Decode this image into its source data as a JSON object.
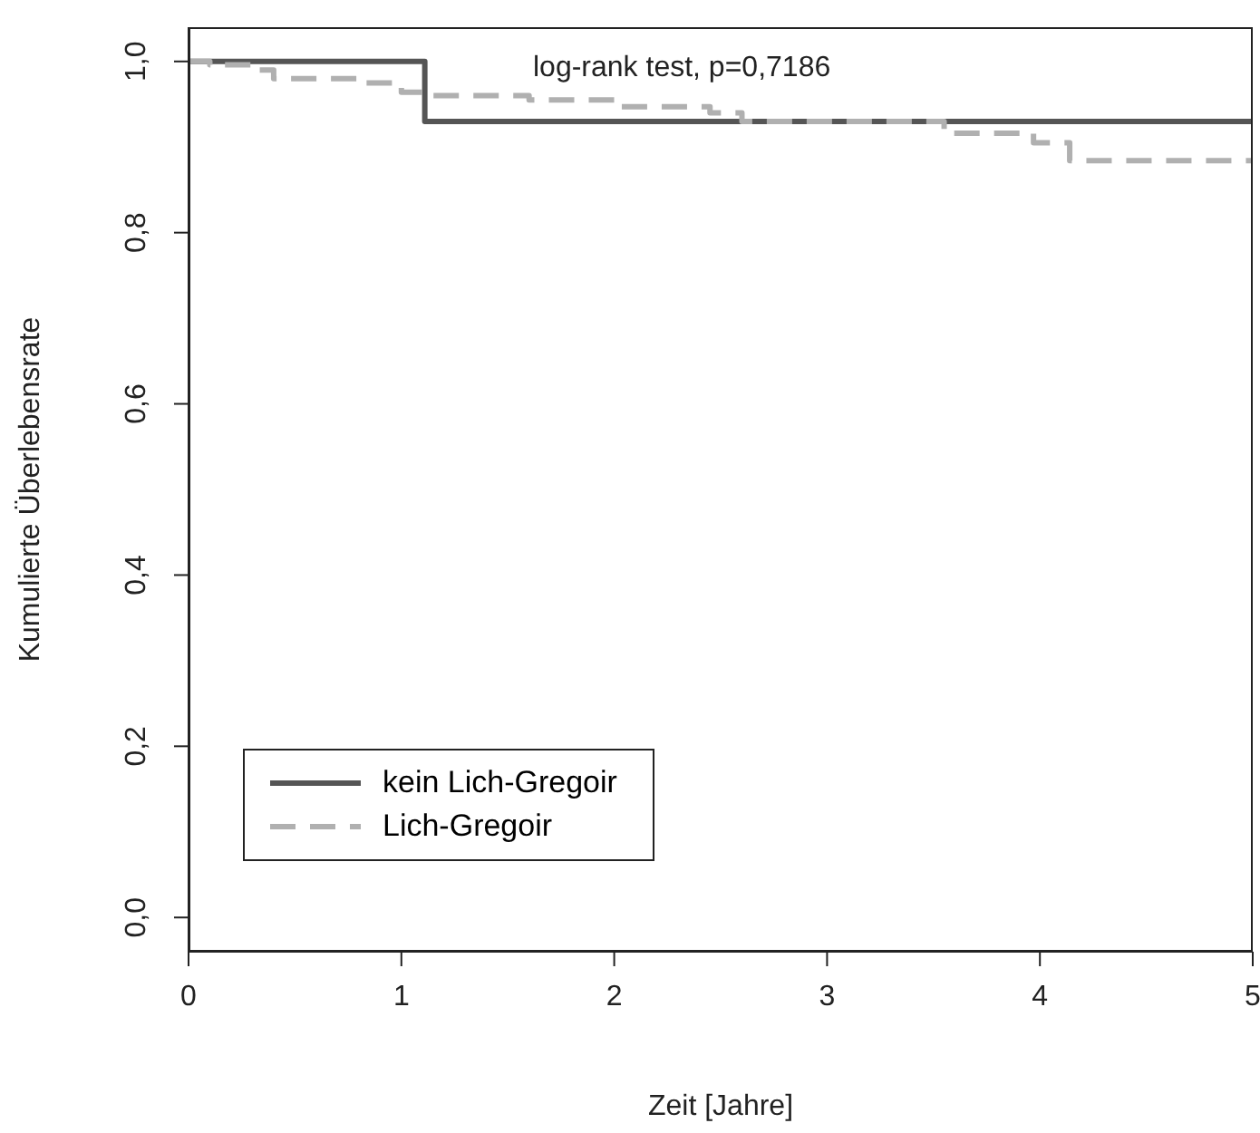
{
  "chart_data": {
    "type": "step",
    "xlabel": "Zeit [Jahre]",
    "ylabel": "Kumulierte Überlebensrate",
    "annotations": [
      "log-rank test, p=0,7186"
    ],
    "xlim": [
      0,
      5
    ],
    "xticks": [
      0,
      1,
      2,
      3,
      4,
      5
    ],
    "ylim": [
      -0.04,
      1.04
    ],
    "yticks": [
      {
        "value": 0,
        "label": "0,0"
      },
      {
        "value": 0.2,
        "label": "0,2"
      },
      {
        "value": 0.4,
        "label": "0,4"
      },
      {
        "value": 0.6,
        "label": "0,6"
      },
      {
        "value": 0.8,
        "label": "0,8"
      },
      {
        "value": 1,
        "label": "1,0"
      }
    ],
    "grid": false,
    "legend": "bottom left",
    "marker": "none",
    "series": [
      {
        "name": "kein Lich-Gregoir",
        "color": "#555555",
        "line_style": "solid",
        "x": [
          0,
          1.11,
          5
        ],
        "values": [
          1,
          0.93,
          0.93
        ]
      },
      {
        "name": "Lich-Gregoir",
        "color": "#b0b0b0",
        "line_style": "dashed",
        "x": [
          0,
          0.1,
          0.3,
          0.4,
          0.82,
          1.0,
          1.1,
          1.6,
          2.0,
          2.45,
          2.6,
          3.55,
          3.97,
          4.14,
          5
        ],
        "values": [
          1,
          0.996,
          0.99,
          0.98,
          0.975,
          0.964,
          0.96,
          0.955,
          0.947,
          0.94,
          0.93,
          0.916,
          0.905,
          0.884,
          0.884
        ]
      }
    ]
  }
}
